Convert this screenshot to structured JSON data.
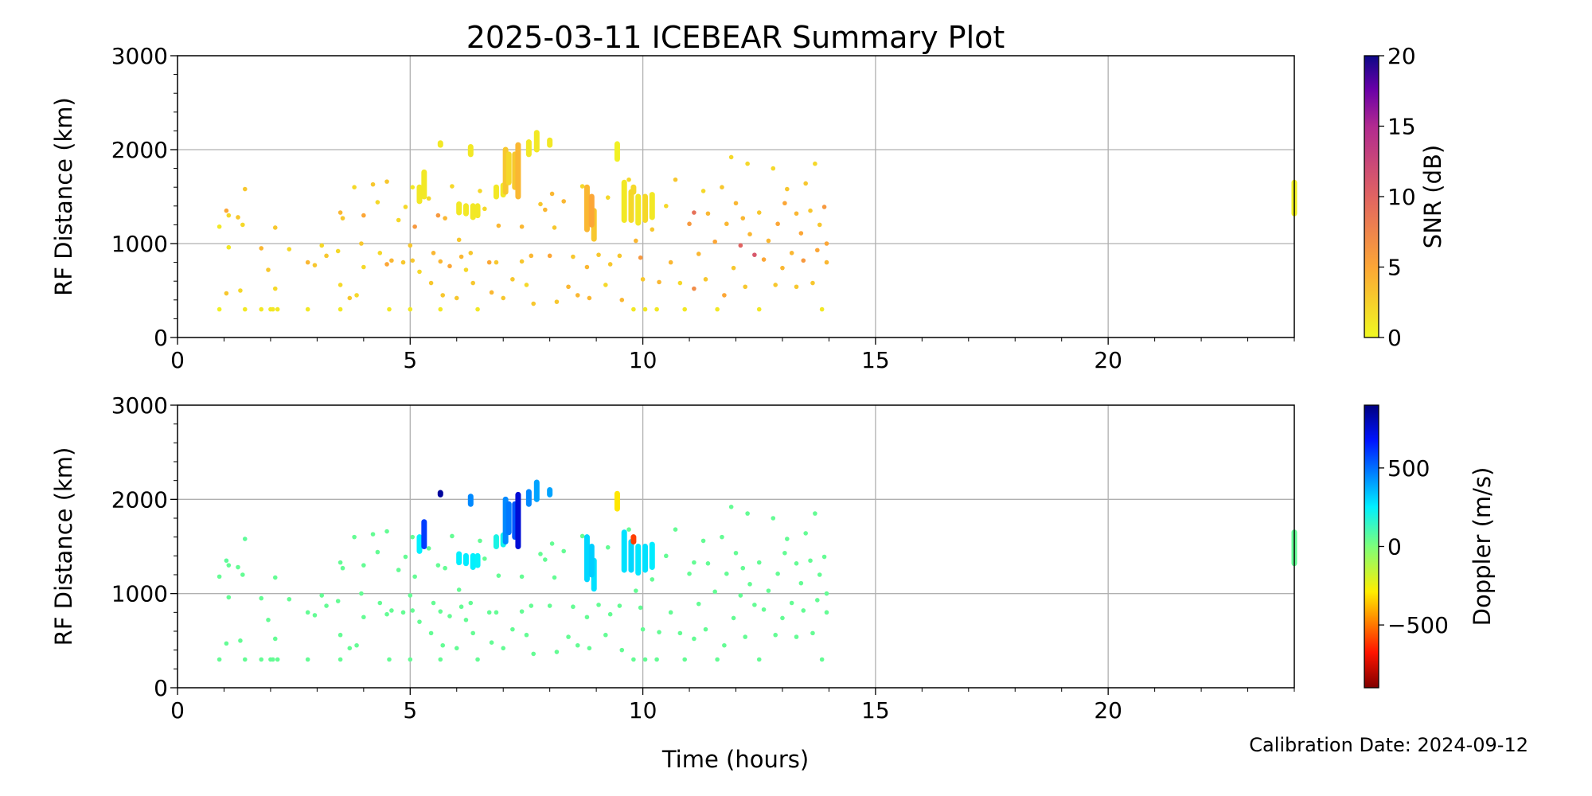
{
  "title": "2025-03-11 ICEBEAR Summary Plot",
  "calibration": "Calibration Date: 2024-09-12",
  "chart_data": [
    {
      "type": "scatter",
      "panel": "top",
      "xlabel": "Time (hours)",
      "ylabel": "RF Distance (km)",
      "xlim": [
        0,
        24
      ],
      "ylim": [
        0,
        3000
      ],
      "xticks": [
        "0",
        "5",
        "10",
        "15",
        "20"
      ],
      "yticks": [
        "0",
        "1000",
        "2000",
        "3000"
      ],
      "grid": true,
      "color_by": "snr",
      "colorbar": {
        "label": "SNR (dB)",
        "range": [
          0,
          20
        ],
        "ticks": [
          "0",
          "5",
          "10",
          "15",
          "20"
        ],
        "tick_values": [
          0,
          5,
          10,
          15,
          20
        ],
        "colormap": "plasma_r"
      }
    },
    {
      "type": "scatter",
      "panel": "bottom",
      "xlabel": "Time (hours)",
      "ylabel": "RF Distance (km)",
      "xlim": [
        0,
        24
      ],
      "ylim": [
        0,
        3000
      ],
      "xticks": [
        "0",
        "5",
        "10",
        "15",
        "20"
      ],
      "yticks": [
        "0",
        "1000",
        "2000",
        "3000"
      ],
      "grid": true,
      "color_by": "doppler",
      "colorbar": {
        "label": "Doppler (m/s)",
        "range": [
          -900,
          900
        ],
        "ticks": [
          "−500",
          "0",
          "500"
        ],
        "tick_values": [
          -500,
          0,
          500
        ],
        "colormap": "jet_r"
      }
    }
  ],
  "measurements": {
    "fields": [
      "time_hours",
      "rf_distance_km",
      "snr_db",
      "doppler_ms"
    ],
    "points": [
      [
        0.9,
        1180,
        1,
        50
      ],
      [
        0.9,
        300,
        0.5,
        50
      ],
      [
        1.05,
        1350,
        5,
        60
      ],
      [
        1.05,
        470,
        3,
        50
      ],
      [
        1.1,
        1300,
        2,
        50
      ],
      [
        1.1,
        960,
        1,
        50
      ],
      [
        1.3,
        1280,
        3,
        50
      ],
      [
        1.35,
        500,
        2,
        50
      ],
      [
        1.4,
        1200,
        2,
        50
      ],
      [
        1.45,
        1580,
        3,
        60
      ],
      [
        1.45,
        300,
        1,
        50
      ],
      [
        1.8,
        950,
        4,
        50
      ],
      [
        1.8,
        300,
        1,
        50
      ],
      [
        1.95,
        720,
        3,
        50
      ],
      [
        2.0,
        300,
        1,
        50
      ],
      [
        2.05,
        300,
        1,
        50
      ],
      [
        2.1,
        1170,
        3,
        50
      ],
      [
        2.1,
        520,
        2,
        50
      ],
      [
        2.15,
        300,
        1,
        50
      ],
      [
        2.4,
        940,
        2,
        50
      ],
      [
        2.8,
        800,
        4,
        50
      ],
      [
        2.8,
        300,
        1,
        50
      ],
      [
        2.95,
        770,
        3,
        50
      ],
      [
        3.1,
        980,
        2,
        50
      ],
      [
        3.2,
        870,
        3,
        50
      ],
      [
        3.45,
        920,
        2,
        50
      ],
      [
        3.5,
        560,
        2,
        50
      ],
      [
        3.5,
        1330,
        4,
        50
      ],
      [
        3.5,
        300,
        1,
        50
      ],
      [
        3.55,
        1270,
        3,
        50
      ],
      [
        3.7,
        420,
        3,
        50
      ],
      [
        3.8,
        1600,
        2,
        50
      ],
      [
        3.85,
        450,
        2,
        50
      ],
      [
        3.95,
        1000,
        3,
        50
      ],
      [
        4.0,
        750,
        2,
        50
      ],
      [
        4.0,
        1300,
        5,
        50
      ],
      [
        4.2,
        1630,
        3,
        50
      ],
      [
        4.3,
        1440,
        2,
        50
      ],
      [
        4.35,
        900,
        2,
        50
      ],
      [
        4.5,
        1660,
        3,
        50
      ],
      [
        4.5,
        780,
        5,
        50
      ],
      [
        4.55,
        300,
        1,
        50
      ],
      [
        4.6,
        820,
        4,
        50
      ],
      [
        4.75,
        1250,
        2,
        50
      ],
      [
        4.85,
        800,
        3,
        50
      ],
      [
        4.9,
        1390,
        2,
        50
      ],
      [
        5.0,
        980,
        3,
        50
      ],
      [
        5.0,
        300,
        1,
        50
      ],
      [
        5.05,
        1600,
        1,
        50
      ],
      [
        5.05,
        820,
        3,
        50
      ],
      [
        5.1,
        1180,
        6,
        50
      ],
      [
        5.2,
        700,
        2,
        50
      ],
      [
        5.4,
        1480,
        2,
        50
      ],
      [
        5.45,
        580,
        3,
        50
      ],
      [
        5.5,
        900,
        4,
        50
      ],
      [
        5.6,
        1300,
        6,
        50
      ],
      [
        5.65,
        810,
        4,
        50
      ],
      [
        5.65,
        300,
        1,
        50
      ],
      [
        5.7,
        450,
        3,
        50
      ],
      [
        5.75,
        1270,
        4,
        50
      ],
      [
        5.85,
        760,
        5,
        50
      ],
      [
        5.9,
        1610,
        2,
        50
      ],
      [
        6.0,
        420,
        3,
        50
      ],
      [
        6.05,
        1040,
        3,
        50
      ],
      [
        6.1,
        860,
        4,
        50
      ],
      [
        6.2,
        720,
        2,
        50
      ],
      [
        6.3,
        900,
        3,
        50
      ],
      [
        6.35,
        580,
        3,
        50
      ],
      [
        6.45,
        300,
        1,
        50
      ],
      [
        6.5,
        1560,
        2,
        50
      ],
      [
        6.6,
        1370,
        2,
        50
      ],
      [
        6.7,
        800,
        5,
        50
      ],
      [
        6.75,
        480,
        4,
        50
      ],
      [
        6.85,
        800,
        3,
        50
      ],
      [
        6.9,
        1190,
        4,
        50
      ],
      [
        7.0,
        420,
        3,
        50
      ],
      [
        7.2,
        620,
        3,
        50
      ],
      [
        7.4,
        1180,
        4,
        50
      ],
      [
        7.4,
        810,
        3,
        50
      ],
      [
        7.5,
        560,
        2,
        50
      ],
      [
        7.6,
        870,
        4,
        50
      ],
      [
        7.65,
        360,
        3,
        50
      ],
      [
        7.8,
        1420,
        3,
        50
      ],
      [
        7.9,
        1360,
        4,
        50
      ],
      [
        8.0,
        870,
        5,
        50
      ],
      [
        8.05,
        1530,
        4,
        50
      ],
      [
        8.1,
        1170,
        3,
        50
      ],
      [
        8.15,
        380,
        3,
        50
      ],
      [
        8.3,
        1450,
        4,
        50
      ],
      [
        8.4,
        540,
        4,
        50
      ],
      [
        8.5,
        860,
        3,
        50
      ],
      [
        8.6,
        450,
        4,
        50
      ],
      [
        8.7,
        1610,
        2,
        50
      ],
      [
        8.8,
        750,
        4,
        50
      ],
      [
        8.85,
        420,
        4,
        50
      ],
      [
        9.05,
        880,
        3,
        50
      ],
      [
        9.2,
        560,
        2,
        50
      ],
      [
        9.25,
        1490,
        2,
        50
      ],
      [
        9.3,
        780,
        3,
        50
      ],
      [
        9.5,
        870,
        3,
        50
      ],
      [
        9.55,
        400,
        4,
        50
      ],
      [
        9.7,
        1680,
        2,
        50
      ],
      [
        9.8,
        300,
        1,
        50
      ],
      [
        9.85,
        1030,
        4,
        50
      ],
      [
        9.95,
        850,
        6,
        50
      ],
      [
        10.0,
        620,
        3,
        50
      ],
      [
        10.05,
        300,
        1,
        50
      ],
      [
        10.2,
        1150,
        3,
        50
      ],
      [
        10.3,
        300,
        1,
        50
      ],
      [
        10.35,
        590,
        4,
        50
      ],
      [
        10.5,
        1400,
        2,
        50
      ],
      [
        10.6,
        800,
        4,
        50
      ],
      [
        10.7,
        1680,
        3,
        50
      ],
      [
        10.8,
        580,
        2,
        50
      ],
      [
        10.9,
        300,
        1,
        50
      ],
      [
        11.0,
        1210,
        6,
        50
      ],
      [
        11.1,
        1330,
        9,
        50
      ],
      [
        11.1,
        520,
        7,
        50
      ],
      [
        11.2,
        890,
        4,
        50
      ],
      [
        11.3,
        1560,
        2,
        50
      ],
      [
        11.35,
        620,
        3,
        50
      ],
      [
        11.4,
        1320,
        4,
        50
      ],
      [
        11.55,
        1020,
        5,
        50
      ],
      [
        11.6,
        300,
        1,
        50
      ],
      [
        11.7,
        1600,
        3,
        50
      ],
      [
        11.75,
        450,
        5,
        50
      ],
      [
        11.8,
        1210,
        4,
        50
      ],
      [
        11.9,
        1920,
        2,
        50
      ],
      [
        11.95,
        740,
        3,
        50
      ],
      [
        12.0,
        1430,
        4,
        50
      ],
      [
        12.1,
        980,
        10,
        50
      ],
      [
        12.15,
        1270,
        4,
        50
      ],
      [
        12.2,
        540,
        3,
        50
      ],
      [
        12.25,
        1850,
        2,
        50
      ],
      [
        12.3,
        1100,
        4,
        50
      ],
      [
        12.4,
        880,
        11,
        50
      ],
      [
        12.5,
        1330,
        3,
        50
      ],
      [
        12.5,
        300,
        1,
        50
      ],
      [
        12.6,
        830,
        5,
        50
      ],
      [
        12.7,
        1030,
        4,
        50
      ],
      [
        12.8,
        1800,
        2,
        50
      ],
      [
        12.85,
        560,
        3,
        50
      ],
      [
        12.9,
        1210,
        5,
        50
      ],
      [
        13.0,
        740,
        4,
        50
      ],
      [
        13.05,
        1430,
        5,
        50
      ],
      [
        13.1,
        1580,
        3,
        50
      ],
      [
        13.2,
        900,
        4,
        50
      ],
      [
        13.3,
        1320,
        4,
        50
      ],
      [
        13.3,
        540,
        3,
        50
      ],
      [
        13.4,
        1110,
        5,
        50
      ],
      [
        13.45,
        820,
        6,
        50
      ],
      [
        13.5,
        1640,
        3,
        50
      ],
      [
        13.6,
        1350,
        3,
        50
      ],
      [
        13.65,
        580,
        3,
        50
      ],
      [
        13.7,
        1850,
        2,
        50
      ],
      [
        13.75,
        930,
        5,
        50
      ],
      [
        13.8,
        1200,
        3,
        50
      ],
      [
        13.85,
        300,
        1,
        50
      ],
      [
        13.9,
        1390,
        6,
        50
      ],
      [
        13.95,
        1000,
        5,
        50
      ],
      [
        13.95,
        800,
        4,
        50
      ]
    ],
    "streaks": {
      "fields": [
        "time_hours",
        "rf_distance_start_km",
        "rf_distance_end_km",
        "snr_db",
        "doppler_ms"
      ],
      "items": [
        [
          5.2,
          1450,
          1600,
          1,
          250
        ],
        [
          5.3,
          1500,
          1760,
          1,
          600
        ],
        [
          5.65,
          2050,
          2070,
          1,
          850
        ],
        [
          6.3,
          1950,
          2030,
          1,
          450
        ],
        [
          6.05,
          1330,
          1420,
          1,
          250
        ],
        [
          6.2,
          1320,
          1400,
          1,
          260
        ],
        [
          6.35,
          1280,
          1400,
          1,
          250
        ],
        [
          6.45,
          1300,
          1400,
          1,
          240
        ],
        [
          6.85,
          1500,
          1600,
          1,
          200
        ],
        [
          7.0,
          1520,
          1620,
          1,
          220
        ],
        [
          7.05,
          1550,
          2000,
          3,
          450
        ],
        [
          7.12,
          1650,
          1950,
          2,
          480
        ],
        [
          7.25,
          1600,
          1950,
          3,
          550
        ],
        [
          7.32,
          1500,
          2050,
          4,
          750
        ],
        [
          7.55,
          1950,
          2080,
          1,
          450
        ],
        [
          7.72,
          2000,
          2180,
          1,
          400
        ],
        [
          8.0,
          2050,
          2100,
          1,
          400
        ],
        [
          8.8,
          1150,
          1600,
          4,
          300
        ],
        [
          8.95,
          1050,
          1350,
          3,
          280
        ],
        [
          8.9,
          1200,
          1500,
          5,
          320
        ],
        [
          9.45,
          1900,
          2060,
          0.5,
          -300
        ],
        [
          9.6,
          1250,
          1650,
          1,
          280
        ],
        [
          9.75,
          1250,
          1550,
          2,
          300
        ],
        [
          9.8,
          1550,
          1600,
          2,
          -600
        ],
        [
          9.9,
          1220,
          1500,
          1,
          270
        ],
        [
          10.05,
          1250,
          1500,
          2,
          280
        ],
        [
          10.2,
          1280,
          1520,
          1,
          260
        ],
        [
          24.0,
          1320,
          1650,
          0.5,
          50
        ]
      ]
    }
  }
}
